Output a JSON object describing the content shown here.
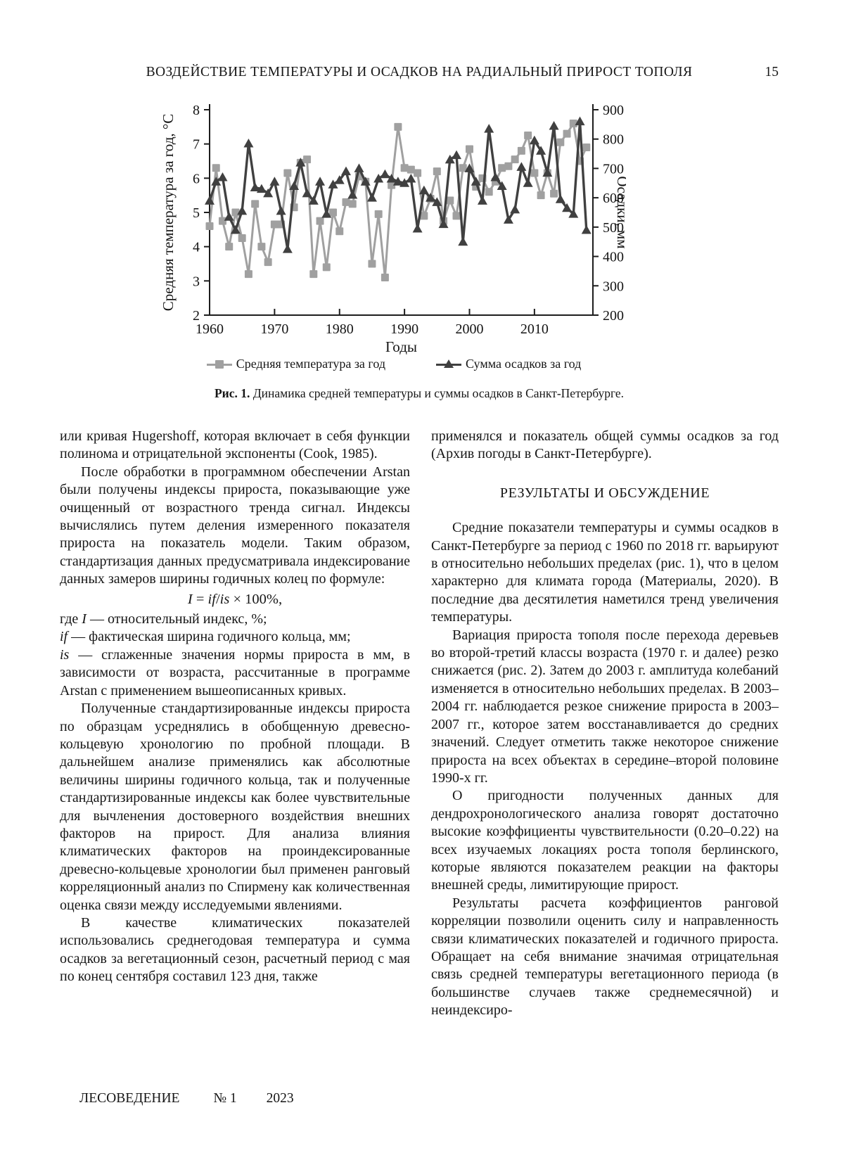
{
  "header": {
    "title": "ВОЗДЕЙСТВИЕ ТЕМПЕРАТУРЫ И ОСАДКОВ НА РАДИАЛЬНЫЙ ПРИРОСТ ТОПОЛЯ",
    "page_number": "15"
  },
  "figure": {
    "caption_label": "Рис. 1.",
    "caption_text": " Динамика средней температуры и суммы осадков в Санкт-Петербурге.",
    "legend": [
      {
        "label": "Средняя температура за год",
        "marker": "square"
      },
      {
        "label": "Сумма осадков за год",
        "marker": "triangle"
      }
    ]
  },
  "chart_data": {
    "type": "line",
    "xlabel": "Годы",
    "ylabel_left": "Средняя температура за год, °C",
    "ylabel_right": "Осадки, мм",
    "x_start": 1960,
    "x_end": 2018,
    "x_ticks": [
      1960,
      1970,
      1980,
      1990,
      2000,
      2010
    ],
    "ylim_left": [
      2,
      8
    ],
    "yticks_left": [
      2,
      3,
      4,
      5,
      6,
      7,
      8
    ],
    "ylim_right": [
      200,
      900
    ],
    "yticks_right": [
      200,
      300,
      400,
      500,
      600,
      700,
      800,
      900
    ],
    "colors": {
      "temperature": "#a0a0a0",
      "precipitation": "#404040"
    },
    "series": [
      {
        "name": "Средняя температура за год",
        "axis": "left",
        "marker": "square",
        "color": "#a0a0a0",
        "values": [
          4.6,
          6.3,
          4.75,
          4.0,
          5.0,
          4.25,
          3.2,
          5.25,
          4.0,
          3.55,
          4.65,
          4.65,
          6.15,
          5.15,
          6.45,
          6.55,
          3.2,
          4.75,
          3.4,
          5.0,
          4.45,
          5.3,
          5.25,
          6.05,
          5.9,
          3.5,
          4.95,
          3.1,
          5.8,
          7.5,
          6.3,
          6.25,
          6.15,
          4.9,
          5.4,
          6.2,
          4.75,
          5.35,
          4.9,
          6.3,
          6.85,
          5.75,
          6.0,
          5.6,
          5.9,
          6.3,
          6.35,
          6.55,
          6.8,
          7.25,
          6.15,
          5.5,
          6.15,
          5.55,
          7.05,
          7.3,
          7.6,
          6.5,
          6.9
        ]
      },
      {
        "name": "Сумма осадков за год",
        "axis": "right",
        "marker": "triangle",
        "color": "#404040",
        "values": [
          590,
          655,
          670,
          535,
          490,
          555,
          785,
          635,
          630,
          615,
          655,
          555,
          425,
          640,
          720,
          615,
          590,
          655,
          545,
          645,
          660,
          690,
          610,
          700,
          655,
          600,
          665,
          680,
          665,
          655,
          650,
          665,
          495,
          625,
          600,
          585,
          510,
          730,
          745,
          450,
          700,
          655,
          590,
          835,
          670,
          640,
          525,
          560,
          705,
          650,
          795,
          760,
          685,
          845,
          595,
          565,
          545,
          860,
          490
        ]
      }
    ]
  },
  "content": {
    "left": {
      "p1": "или кривая Hugershoff, которая включает в себя функции полинома и отрицательной экспоненты (Cook, 1985).",
      "p2": "После обработки в программном обеспечении Arstan были получены индексы прироста, показывающие уже очищенный от возрастного тренда сигнал. Индексы вычислялись путем деления измеренного показателя прироста на показатель модели. Таким образом, стандартизация данных предусматривала индексирование данных замеров ширины годичных колец по формуле:",
      "formula": {
        "i1": "I",
        "eq": " = ",
        "if": "if",
        "slash": "/",
        "is": "is",
        "tail": " × 100%,"
      },
      "def1": {
        "prefix": "где ",
        "var": "I",
        "tail": " — относительный индекс, %;"
      },
      "def2": {
        "prefix": "",
        "var": "if",
        "tail": " — фактическая ширина годичного кольца, мм;"
      },
      "def3": {
        "prefix": "",
        "var": "is",
        "tail": " — сглаженные значения нормы прироста в мм, в зависимости от возраста, рассчитанные в программе Arstan с применением вышеописанных кривых."
      },
      "p3": "Полученные стандартизированные индексы прироста по образцам усреднялись в обобщенную древесно-кольцевую хронологию по пробной площади. В дальнейшем анализе применялись как абсолютные величины ширины годичного кольца, так и полученные стандартизированные индексы как более чувствительные для вычленения достоверного воздействия внешних факторов на прирост. Для анализа влияния климатических факторов на проиндексированные древесно-кольцевые хронологии был применен ранговый корреляционный анализ по Спирмену как количественная оценка связи между исследуемыми явлениями.",
      "p4": "В качестве климатических показателей использовались среднегодовая температура и сумма осадков за вегетационный сезон, расчетный период с мая по конец сентября составил 123 дня, также"
    },
    "right": {
      "p1": "применялся и показатель общей суммы осадков за год (Архив погоды в Санкт-Петербурге).",
      "heading": "РЕЗУЛЬТАТЫ И ОБСУЖДЕНИЕ",
      "p2": "Средние показатели температуры и суммы осадков в Санкт-Петербурге за период с 1960 по 2018 гг. варьируют в относительно небольших пределах (рис. 1), что в целом характерно для климата города (Материалы, 2020). В последние два десятилетия наметился тренд увеличения температуры.",
      "p3": "Вариация прироста тополя после перехода деревьев во второй-третий классы возраста (1970 г. и далее) резко снижается (рис. 2). Затем до 2003 г. амплитуда колебаний изменяется в относительно небольших пределах. В 2003–2004 гг. наблюдается резкое снижение прироста в 2003–2007 гг., которое затем восстанавливается до средних значений. Следует отметить также некоторое снижение прироста на всех объектах в середине–второй половине 1990-х гг.",
      "p4": "О пригодности полученных данных для дендрохронологического анализа говорят достаточно высокие коэффициенты чувствительности (0.20–0.22) на всех изучаемых локациях роста тополя берлинского, которые являются показателем реакции на факторы внешней среды, лимитирующие прирост.",
      "p5": "Результаты расчета коэффициентов ранговой корреляции позволили оценить силу и направленность связи климатических показателей и годичного прироста. Обращает на себя внимание значимая отрицательная связь средней температуры вегетационного периода (в большинстве случаев также среднемесячной) и неиндексиро-"
    }
  },
  "footer": {
    "journal": "ЛЕСОВЕДЕНИЕ",
    "issue": "№ 1",
    "year": "2023"
  }
}
